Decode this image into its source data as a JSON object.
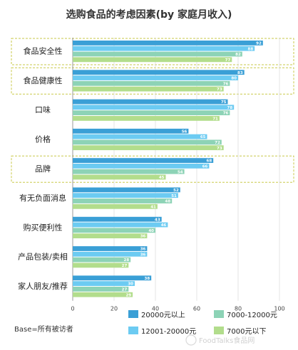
{
  "chart_data": {
    "type": "bar",
    "orientation": "horizontal",
    "title": "选购食品的考虑因素(by 家庭月收入)",
    "categories": [
      "食品安全性",
      "食品健康性",
      "口味",
      "价格",
      "品牌",
      "有无负面消息",
      "购买便利性",
      "产品包装/卖相",
      "家人朋友/推荐"
    ],
    "highlighted_categories": [
      "食品安全性",
      "食品健康性",
      "品牌"
    ],
    "series": [
      {
        "name": "20000元以上",
        "color": "#3a9fd6",
        "values": [
          92,
          83,
          75,
          56,
          68,
          52,
          43,
          36,
          38
        ]
      },
      {
        "name": "12001-20000元",
        "color": "#6ccbf2",
        "values": [
          88,
          80,
          78,
          65,
          66,
          51,
          46,
          36,
          30
        ]
      },
      {
        "name": "7000-12000元",
        "color": "#8dd3b6",
        "values": [
          82,
          76,
          76,
          72,
          54,
          48,
          40,
          28,
          27
        ]
      },
      {
        "name": "7000元以下",
        "color": "#b2dd8c",
        "values": [
          77,
          73,
          71,
          73,
          45,
          41,
          36,
          27,
          29
        ]
      }
    ],
    "xlim": [
      0,
      100
    ],
    "xticks": [
      "0",
      "20",
      "40",
      "60",
      "80",
      "100"
    ],
    "grid": true,
    "legend": "bottom",
    "base_note": "Base=所有被访者",
    "watermark": "FoodTalks食品网"
  }
}
